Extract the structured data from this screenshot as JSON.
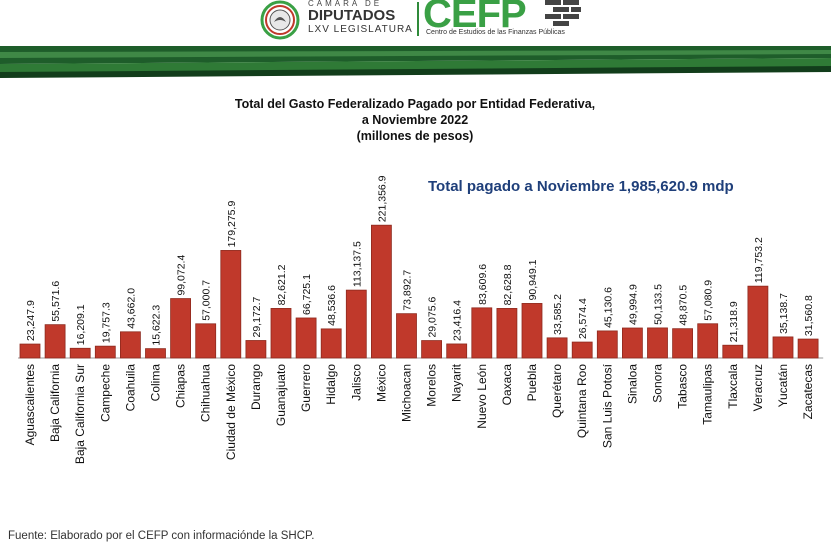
{
  "header": {
    "camara_top": "CÁMARA DE",
    "camara_main": "DIPUTADOS",
    "camara_legislatura": "LXV LEGISLATURA",
    "cefp_logo": "CEFP",
    "cefp_subtitle": "Centro de Estudios de las Finanzas Públicas"
  },
  "colors": {
    "bar": "#c0392b",
    "bar_dark": "#8e2a1e",
    "brand_green": "#3aa045",
    "total_blue": "#1f3f7a"
  },
  "total_label": "Total pagado a Noviembre  1,985,620.9 mdp",
  "footer": "Fuente: Elaborado por el CEFP con informaciónde la SHCP.",
  "chart_data": {
    "type": "bar",
    "title": "Total del Gasto Federalizado Pagado por Entidad Federativa,",
    "subtitle": "a Noviembre 2022",
    "unit_label": "(millones de pesos)",
    "xlabel": "",
    "ylabel": "",
    "ylim": [
      0,
      230000
    ],
    "grid": false,
    "categories": [
      "Aguascalientes",
      "Baja California",
      "Baja California Sur",
      "Campeche",
      "Coahuila",
      "Colima",
      "Chiapas",
      "Chihuahua",
      "Ciudad de México",
      "Durango",
      "Guanajuato",
      "Guerrero",
      "Hidalgo",
      "Jalisco",
      "México",
      "Michoacan",
      "Morelos",
      "Nayarit",
      "Nuevo León",
      "Oaxaca",
      "Puebla",
      "Querétaro",
      "Quintana Roo",
      "San Luis Potosí",
      "Sinaloa",
      "Sonora",
      "Tabasco",
      "Tamaulipas",
      "Tlaxcala",
      "Veracruz",
      "Yucatán",
      "Zacatecas"
    ],
    "values": [
      23247.9,
      55571.6,
      16209.1,
      19757.3,
      43662.0,
      15622.3,
      99072.4,
      57000.7,
      179275.9,
      29172.7,
      82621.2,
      66725.1,
      48536.6,
      113137.5,
      221356.9,
      73892.7,
      29075.6,
      23416.4,
      83609.6,
      82628.8,
      90949.1,
      33585.2,
      26574.4,
      45130.6,
      49994.9,
      50133.5,
      48870.5,
      57080.9,
      21318.9,
      119753.2,
      35138.7,
      31560.8
    ],
    "value_labels": [
      "23,247.9",
      "55,571.6",
      "16,209.1",
      "19,757.3",
      "43,662.0",
      "15,622.3",
      "99,072.4",
      "57,000.7",
      "179,275.9",
      "29,172.7",
      "82,621.2",
      "66,725.1",
      "48,536.6",
      "113,137.5",
      "221,356.9",
      "73,892.7",
      "29,075.6",
      "23,416.4",
      "83,609.6",
      "82,628.8",
      "90,949.1",
      "33,585.2",
      "26,574.4",
      "45,130.6",
      "49,994.9",
      "50,133.5",
      "48,870.5",
      "57,080.9",
      "21,318.9",
      "119,753.2",
      "35,138.7",
      "31,560.8"
    ]
  }
}
